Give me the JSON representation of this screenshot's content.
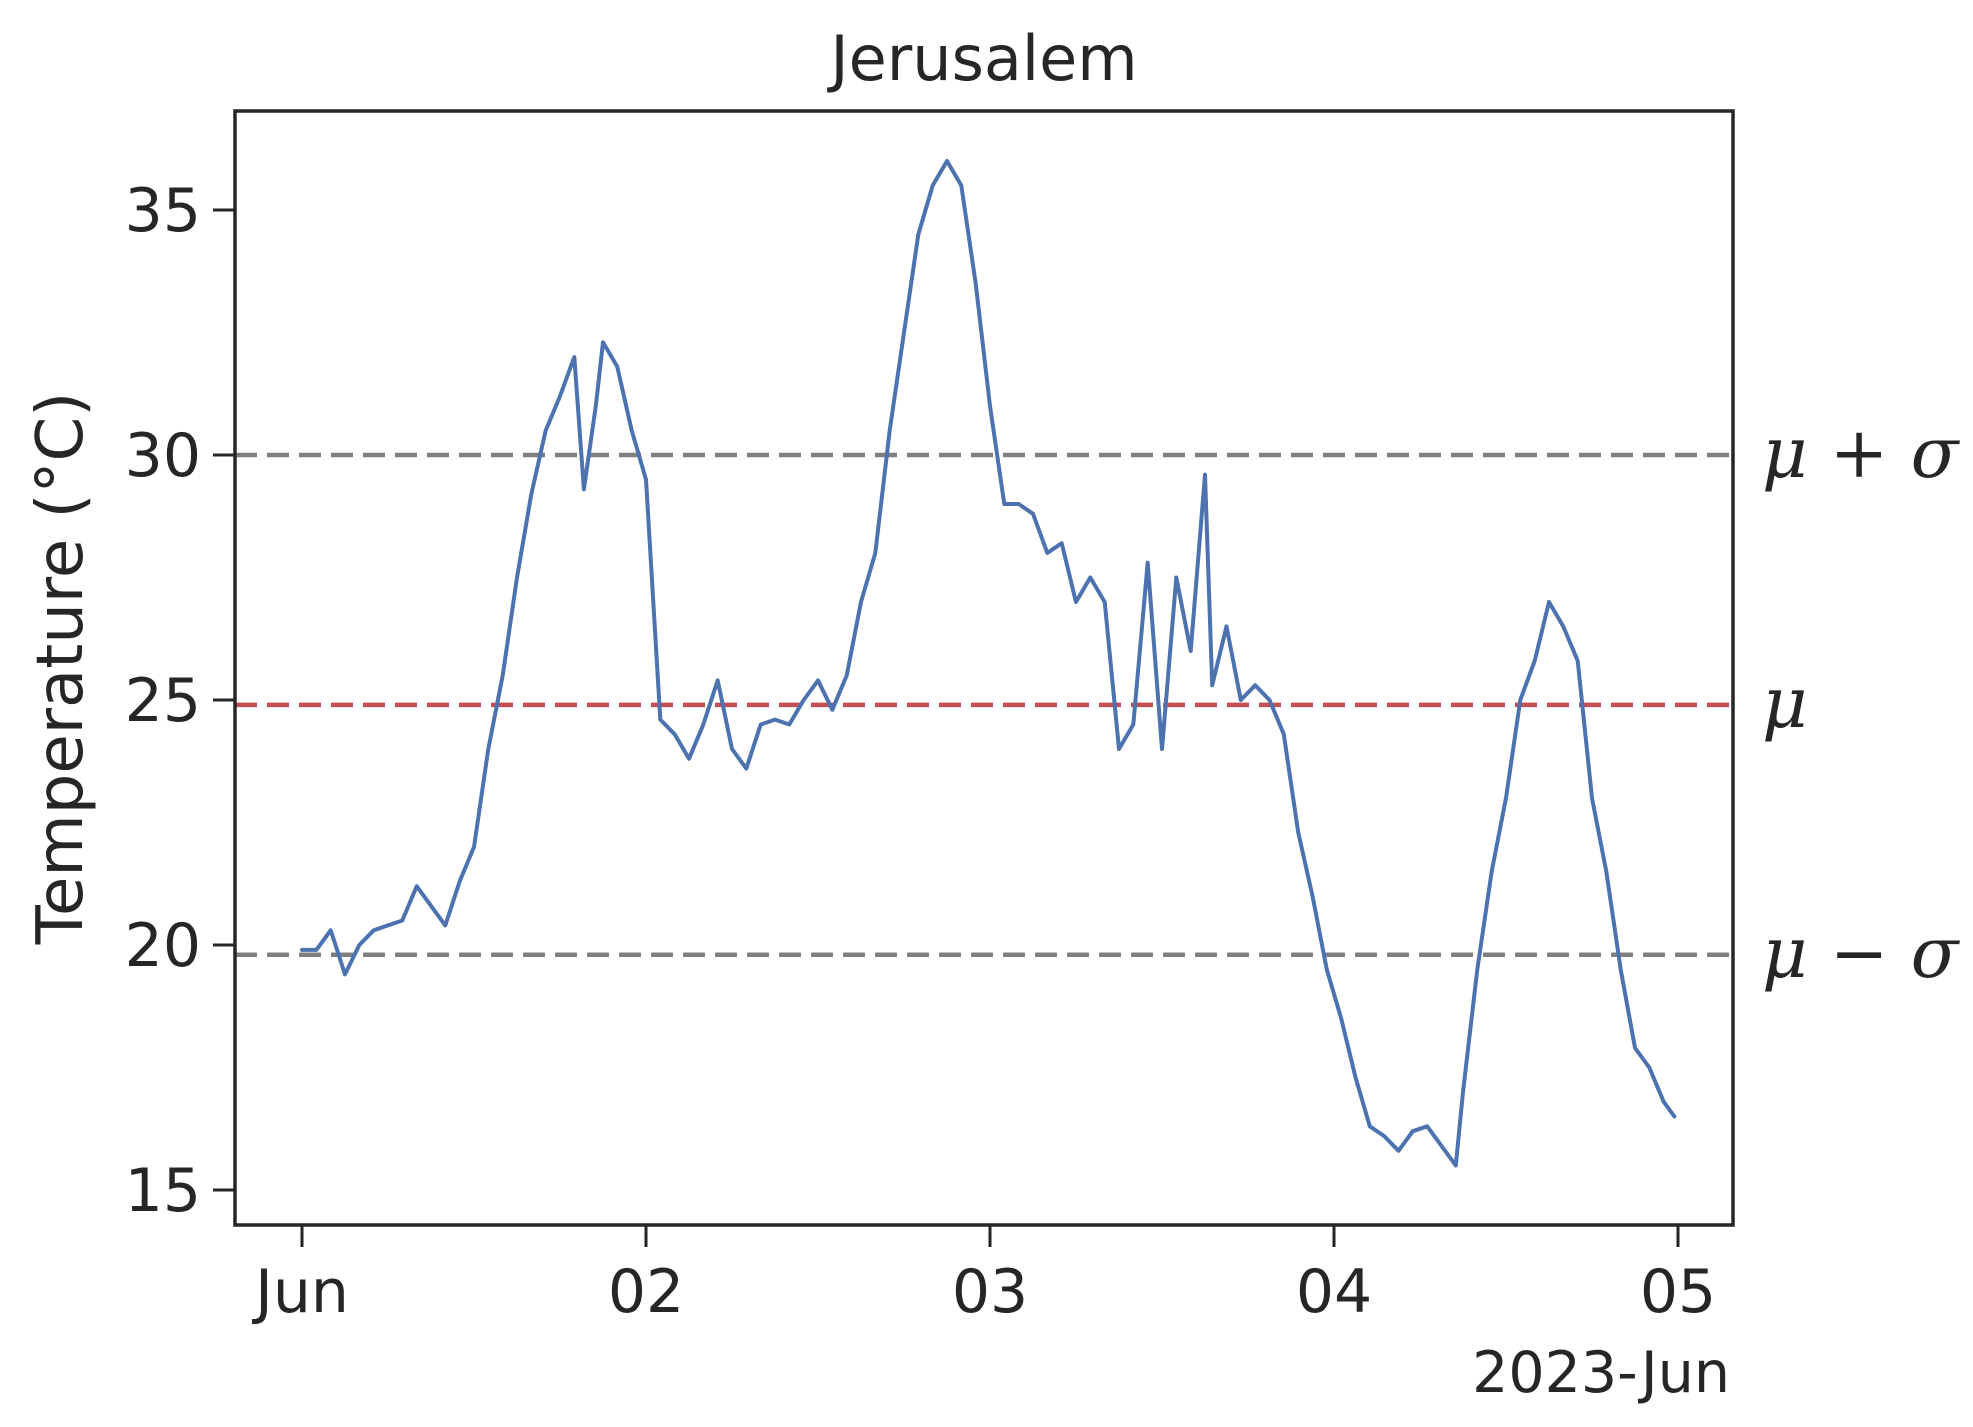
{
  "chart_data": {
    "type": "line",
    "title": "Jerusalem",
    "ylabel": "Temperature (°C)",
    "xlabel": "",
    "x_offset_label": "2023-Jun",
    "xlim": [
      "2023-06-01T00:00",
      "2023-06-05T00:00"
    ],
    "ylim": [
      15,
      36
    ],
    "x_ticks": [
      {
        "value": "2023-06-01",
        "label": "Jun"
      },
      {
        "value": "2023-06-02",
        "label": "02"
      },
      {
        "value": "2023-06-03",
        "label": "03"
      },
      {
        "value": "2023-06-04",
        "label": "04"
      },
      {
        "value": "2023-06-05",
        "label": "05"
      }
    ],
    "y_ticks": [
      15,
      20,
      25,
      30,
      35
    ],
    "grid": false,
    "reference_lines": [
      {
        "label": "μ + σ",
        "value": 30.0,
        "color": "#7f7f7f",
        "style": "dashed"
      },
      {
        "label": "μ",
        "value": 24.9,
        "color": "#c44e52",
        "style": "dashed"
      },
      {
        "label": "μ − σ",
        "value": 19.8,
        "color": "#7f7f7f",
        "style": "dashed"
      }
    ],
    "series": [
      {
        "color": "#4c72b0",
        "points": [
          [
            "2023-06-01T00:00",
            19.9
          ],
          [
            "2023-06-01T01:00",
            19.9
          ],
          [
            "2023-06-01T02:00",
            20.3
          ],
          [
            "2023-06-01T03:00",
            19.4
          ],
          [
            "2023-06-01T04:00",
            20.0
          ],
          [
            "2023-06-01T05:00",
            20.3
          ],
          [
            "2023-06-01T06:00",
            20.4
          ],
          [
            "2023-06-01T07:00",
            20.5
          ],
          [
            "2023-06-01T08:00",
            21.2
          ],
          [
            "2023-06-01T09:00",
            20.8
          ],
          [
            "2023-06-01T10:00",
            20.4
          ],
          [
            "2023-06-01T11:00",
            21.3
          ],
          [
            "2023-06-01T12:00",
            22.0
          ],
          [
            "2023-06-01T13:00",
            24.0
          ],
          [
            "2023-06-01T14:00",
            25.5
          ],
          [
            "2023-06-01T15:00",
            27.5
          ],
          [
            "2023-06-01T16:00",
            29.2
          ],
          [
            "2023-06-01T17:00",
            30.5
          ],
          [
            "2023-06-01T18:00",
            31.2
          ],
          [
            "2023-06-01T19:00",
            32.0
          ],
          [
            "2023-06-01T19:40",
            29.3
          ],
          [
            "2023-06-01T20:30",
            31.0
          ],
          [
            "2023-06-01T21:00",
            32.3
          ],
          [
            "2023-06-01T22:00",
            31.8
          ],
          [
            "2023-06-01T23:00",
            30.5
          ],
          [
            "2023-06-02T00:00",
            29.5
          ],
          [
            "2023-06-02T01:00",
            24.6
          ],
          [
            "2023-06-02T02:00",
            24.3
          ],
          [
            "2023-06-02T03:00",
            23.8
          ],
          [
            "2023-06-02T04:00",
            24.5
          ],
          [
            "2023-06-02T05:00",
            25.4
          ],
          [
            "2023-06-02T06:00",
            24.0
          ],
          [
            "2023-06-02T07:00",
            23.6
          ],
          [
            "2023-06-02T08:00",
            24.5
          ],
          [
            "2023-06-02T09:00",
            24.6
          ],
          [
            "2023-06-02T10:00",
            24.5
          ],
          [
            "2023-06-02T11:00",
            25.0
          ],
          [
            "2023-06-02T12:00",
            25.4
          ],
          [
            "2023-06-02T13:00",
            24.8
          ],
          [
            "2023-06-02T14:00",
            25.5
          ],
          [
            "2023-06-02T15:00",
            27.0
          ],
          [
            "2023-06-02T16:00",
            28.0
          ],
          [
            "2023-06-02T17:00",
            30.5
          ],
          [
            "2023-06-02T18:00",
            32.5
          ],
          [
            "2023-06-02T19:00",
            34.5
          ],
          [
            "2023-06-02T20:00",
            35.5
          ],
          [
            "2023-06-02T21:00",
            36.0
          ],
          [
            "2023-06-02T22:00",
            35.5
          ],
          [
            "2023-06-02T23:00",
            33.5
          ],
          [
            "2023-06-03T00:00",
            31.0
          ],
          [
            "2023-06-03T01:00",
            29.0
          ],
          [
            "2023-06-03T02:00",
            29.0
          ],
          [
            "2023-06-03T03:00",
            28.8
          ],
          [
            "2023-06-03T04:00",
            28.0
          ],
          [
            "2023-06-03T05:00",
            28.2
          ],
          [
            "2023-06-03T06:00",
            27.0
          ],
          [
            "2023-06-03T07:00",
            27.5
          ],
          [
            "2023-06-03T08:00",
            27.0
          ],
          [
            "2023-06-03T09:00",
            24.0
          ],
          [
            "2023-06-03T10:00",
            24.5
          ],
          [
            "2023-06-03T11:00",
            27.8
          ],
          [
            "2023-06-03T12:00",
            24.0
          ],
          [
            "2023-06-03T13:00",
            27.5
          ],
          [
            "2023-06-03T14:00",
            26.0
          ],
          [
            "2023-06-03T15:00",
            29.6
          ],
          [
            "2023-06-03T15:30",
            25.3
          ],
          [
            "2023-06-03T16:30",
            26.5
          ],
          [
            "2023-06-03T17:30",
            25.0
          ],
          [
            "2023-06-03T18:30",
            25.3
          ],
          [
            "2023-06-03T19:30",
            25.0
          ],
          [
            "2023-06-03T20:30",
            24.3
          ],
          [
            "2023-06-03T21:30",
            22.3
          ],
          [
            "2023-06-03T22:30",
            21.0
          ],
          [
            "2023-06-03T23:30",
            19.5
          ],
          [
            "2023-06-04T00:30",
            18.5
          ],
          [
            "2023-06-04T01:30",
            17.3
          ],
          [
            "2023-06-04T02:30",
            16.3
          ],
          [
            "2023-06-04T03:30",
            16.1
          ],
          [
            "2023-06-04T04:30",
            15.8
          ],
          [
            "2023-06-04T05:30",
            16.2
          ],
          [
            "2023-06-04T06:30",
            16.3
          ],
          [
            "2023-06-04T07:30",
            15.9
          ],
          [
            "2023-06-04T08:30",
            15.5
          ],
          [
            "2023-06-04T09:00",
            17.0
          ],
          [
            "2023-06-04T10:00",
            19.5
          ],
          [
            "2023-06-04T11:00",
            21.5
          ],
          [
            "2023-06-04T12:00",
            23.0
          ],
          [
            "2023-06-04T13:00",
            25.0
          ],
          [
            "2023-06-04T14:00",
            25.8
          ],
          [
            "2023-06-04T15:00",
            27.0
          ],
          [
            "2023-06-04T16:00",
            26.5
          ],
          [
            "2023-06-04T17:00",
            25.8
          ],
          [
            "2023-06-04T18:00",
            23.0
          ],
          [
            "2023-06-04T19:00",
            21.5
          ],
          [
            "2023-06-04T20:00",
            19.5
          ],
          [
            "2023-06-04T21:00",
            17.9
          ],
          [
            "2023-06-04T22:00",
            17.5
          ],
          [
            "2023-06-04T23:00",
            16.8
          ],
          [
            "2023-06-04T23:45",
            16.5
          ]
        ]
      }
    ]
  }
}
